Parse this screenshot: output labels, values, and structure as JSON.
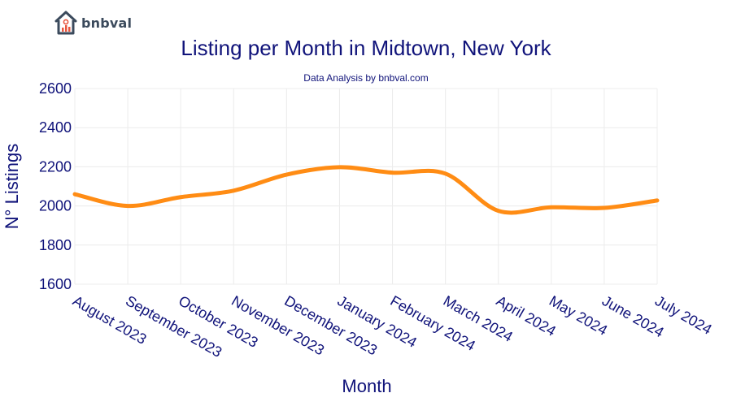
{
  "logo": {
    "text": "bnbval"
  },
  "colors": {
    "title": "#10137a",
    "line": "#ff8c14",
    "grid": "#ececec",
    "logo_dark": "#3b4a5c",
    "logo_accent": "#e8553d"
  },
  "chart_data": {
    "type": "line",
    "title": "Listing per Month in Midtown, New York",
    "subtitle": "Data Analysis by bnbval.com",
    "xlabel": "Month",
    "ylabel": "N° Listings",
    "ylim": [
      1600,
      2600
    ],
    "yticks": [
      1600,
      1800,
      2000,
      2200,
      2400,
      2600
    ],
    "grid": true,
    "categories": [
      "August 2023",
      "September 2023",
      "October 2023",
      "November 2023",
      "December 2023",
      "January 2024",
      "February 2024",
      "March 2024",
      "April 2024",
      "May 2024",
      "June 2024",
      "July 2024"
    ],
    "series": [
      {
        "values": [
          2060,
          2000,
          2045,
          2078,
          2160,
          2198,
          2170,
          2165,
          1975,
          1993,
          1990,
          2028
        ]
      }
    ]
  }
}
